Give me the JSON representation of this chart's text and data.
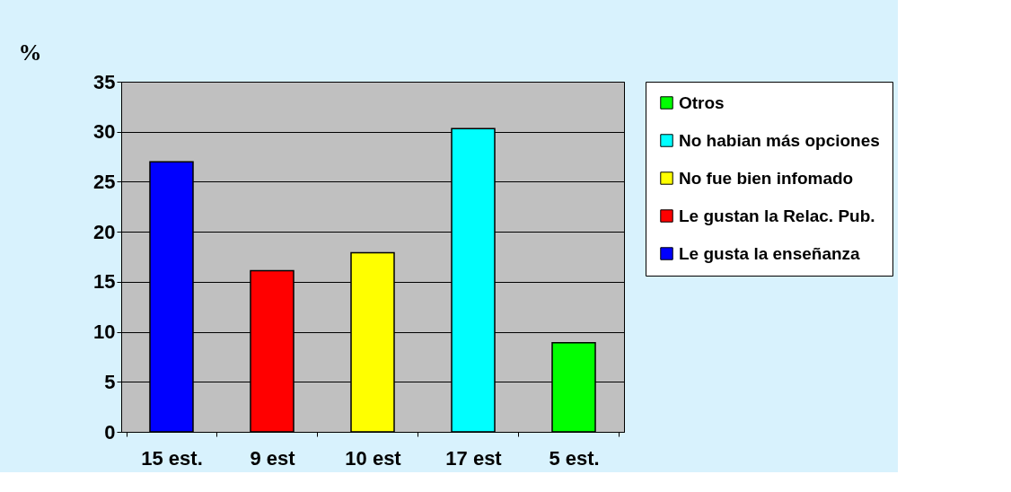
{
  "chart_data": {
    "type": "bar",
    "ylabel": "%",
    "categories": [
      "15 est.",
      "9 est",
      "10 est",
      "17 est",
      "5 est."
    ],
    "series": [
      {
        "name": "Le gusta la enseñanza",
        "color": "#0000ff",
        "values": [
          27,
          null,
          null,
          null,
          null
        ]
      },
      {
        "name": "Le gustan la Relac. Pub.",
        "color": "#ff0000",
        "values": [
          null,
          16.1,
          null,
          null,
          null
        ]
      },
      {
        "name": "No fue bien infomado",
        "color": "#ffff00",
        "values": [
          null,
          null,
          17.9,
          null,
          null
        ]
      },
      {
        "name": "No habian más opciones",
        "color": "#00ffff",
        "values": [
          null,
          null,
          null,
          30.3,
          null
        ]
      },
      {
        "name": "Otros",
        "color": "#00ff00",
        "values": [
          null,
          null,
          null,
          null,
          8.9
        ]
      }
    ],
    "ylim": [
      0,
      35
    ],
    "yticks": [
      0,
      5,
      10,
      15,
      20,
      25,
      30,
      35
    ],
    "grid": "y",
    "legend": "right"
  }
}
